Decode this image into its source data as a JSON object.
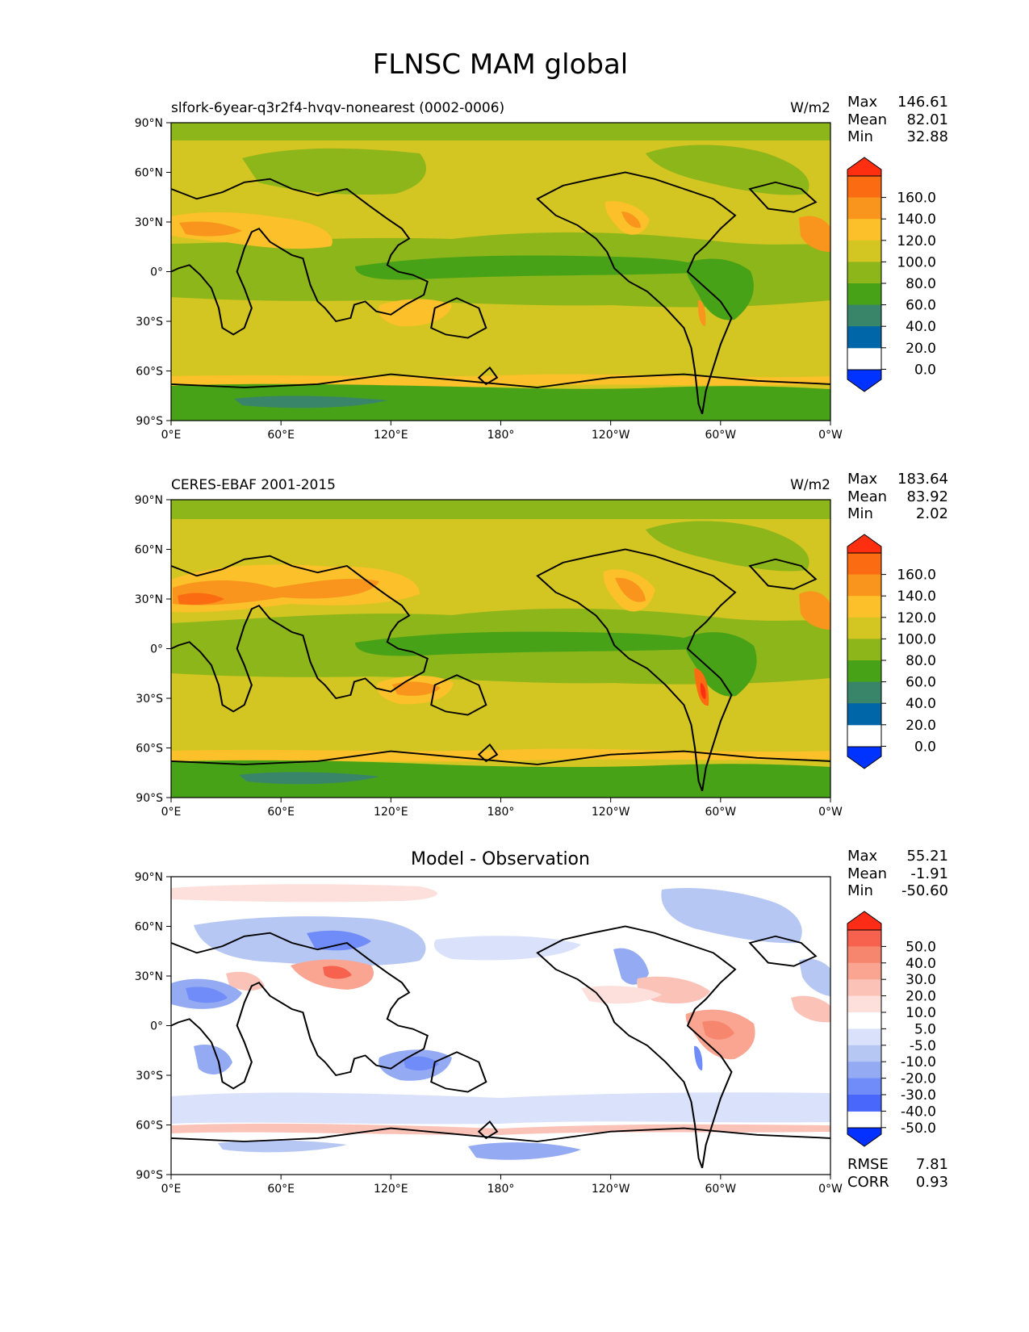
{
  "figure": {
    "title": "FLNSC MAM global"
  },
  "axes": {
    "x_ticks": [
      "0°E",
      "60°E",
      "120°E",
      "180°",
      "120°W",
      "60°W",
      "0°W"
    ],
    "y_ticks": [
      "90°N",
      "60°N",
      "30°N",
      "0°",
      "30°S",
      "60°S",
      "90°S"
    ]
  },
  "colors": {
    "field_scale": [
      "#0033ff",
      "#0066a8",
      "#38856a",
      "#48a218",
      "#8cb61a",
      "#d3c522",
      "#fbc02a",
      "#f9951c",
      "#fb6b12",
      "#fe2f10"
    ],
    "diff_scale": [
      "#0431ff",
      "#4a67fc",
      "#6f8cf8",
      "#94abf4",
      "#b7c7f4",
      "#dae2fb",
      "#ffffff",
      "#fde0dc",
      "#fbc2b8",
      "#f9a592",
      "#f7866e",
      "#f6624e",
      "#fc2c16"
    ],
    "land_outline": "#000000"
  },
  "chart_data": [
    {
      "type": "heatmap",
      "panel": "test",
      "title": "slfork-6year-q3r2f4-hvqv-nonearest (0002-0006)",
      "units": "W/m2",
      "stats": {
        "max_label": "Max",
        "max": "146.61",
        "mean_label": "Mean",
        "mean": "82.01",
        "min_label": "Min",
        "min": "32.88"
      },
      "xlim": [
        0,
        360
      ],
      "ylim": [
        -90,
        90
      ],
      "colorbar_levels": [
        0,
        20,
        40,
        60,
        80,
        100,
        120,
        140,
        160
      ],
      "colorbar_labels": [
        "160.0",
        "140.0",
        "120.0",
        "100.0",
        "80.0",
        "60.0",
        "40.0",
        "20.0",
        "0.0"
      ]
    },
    {
      "type": "heatmap",
      "panel": "reference",
      "title": "CERES-EBAF 2001-2015",
      "units": "W/m2",
      "stats": {
        "max_label": "Max",
        "max": "183.64",
        "mean_label": "Mean",
        "mean": "83.92",
        "min_label": "Min",
        "min": "2.02"
      },
      "xlim": [
        0,
        360
      ],
      "ylim": [
        -90,
        90
      ],
      "colorbar_levels": [
        0,
        20,
        40,
        60,
        80,
        100,
        120,
        140,
        160
      ],
      "colorbar_labels": [
        "160.0",
        "140.0",
        "120.0",
        "100.0",
        "80.0",
        "60.0",
        "40.0",
        "20.0",
        "0.0"
      ]
    },
    {
      "type": "heatmap",
      "panel": "difference",
      "title": "Model - Observation",
      "units": "",
      "stats": {
        "max_label": "Max",
        "max": "55.21",
        "mean_label": "Mean",
        "mean": "-1.91",
        "min_label": "Min",
        "min": "-50.60"
      },
      "xlim": [
        0,
        360
      ],
      "ylim": [
        -90,
        90
      ],
      "colorbar_levels": [
        -50,
        -40,
        -30,
        -20,
        -10,
        -5,
        5,
        10,
        20,
        30,
        40,
        50
      ],
      "colorbar_labels": [
        "50.0",
        "40.0",
        "30.0",
        "20.0",
        "10.0",
        "5.0",
        "-5.0",
        "-10.0",
        "-20.0",
        "-30.0",
        "-40.0",
        "-50.0"
      ],
      "metrics": {
        "rmse_label": "RMSE",
        "rmse": "7.81",
        "corr_label": "CORR",
        "corr": "0.93"
      }
    }
  ]
}
